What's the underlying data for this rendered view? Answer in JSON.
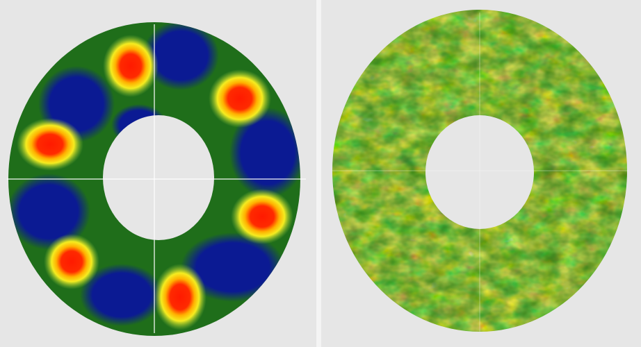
{
  "figure": {
    "panels": [
      {
        "name": "left-panel",
        "pattern": "ordered",
        "spots": 6
      },
      {
        "name": "right-panel",
        "pattern": "turbulent"
      }
    ],
    "colors": {
      "background": "#e6e6e6",
      "low": "#0a1f8f",
      "mid_low": "#1e6f10",
      "mid": "#7fbf20",
      "mid_high": "#f2e200",
      "high": "#ff2200",
      "crosshair": "#ffffff"
    }
  }
}
